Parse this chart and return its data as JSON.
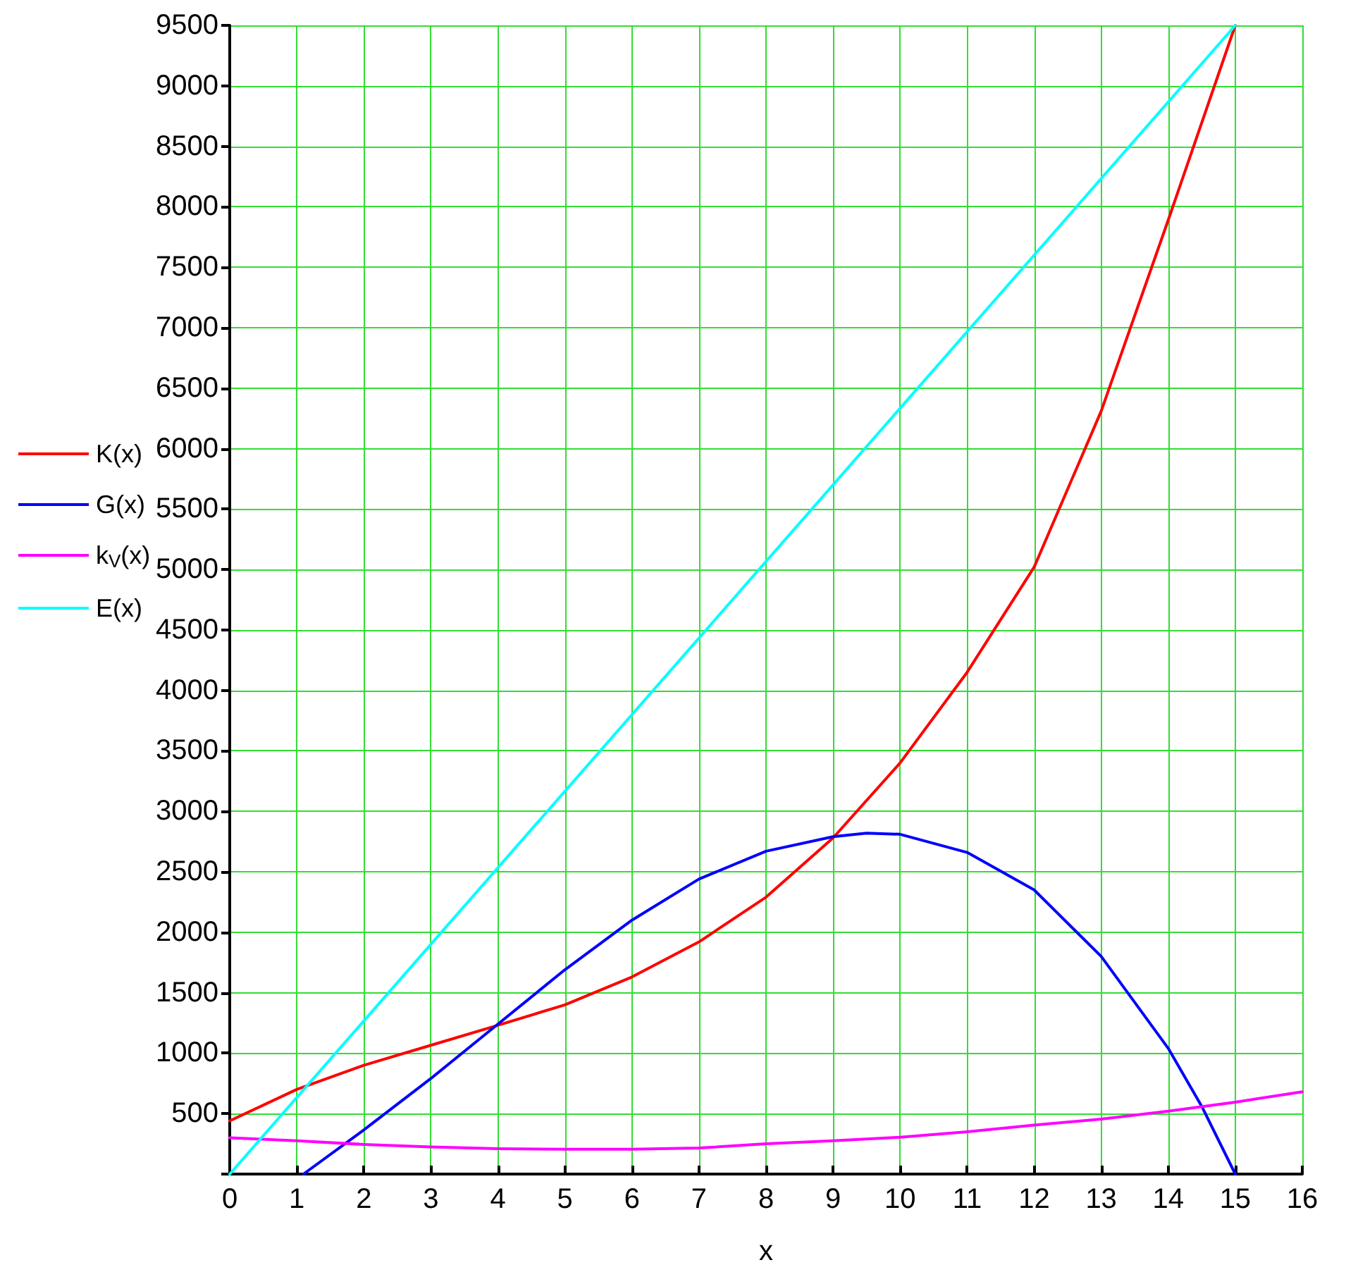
{
  "chart_data": {
    "type": "line",
    "xlabel": "x",
    "xlim": [
      0,
      16
    ],
    "xticks": [
      0,
      1,
      2,
      3,
      4,
      5,
      6,
      7,
      8,
      9,
      10,
      11,
      12,
      13,
      14,
      15,
      16
    ],
    "ylim": [
      0,
      9500
    ],
    "yticks": [
      {
        "value": 0,
        "label": null
      },
      500,
      1000,
      1500,
      2000,
      2500,
      3000,
      3500,
      4000,
      4500,
      5000,
      5500,
      6000,
      6500,
      7000,
      7500,
      8000,
      8500,
      9000,
      9500
    ],
    "grid": true,
    "legend": "left",
    "marker": "none",
    "line_style": "solid",
    "series": [
      {
        "name": "K(x)",
        "color": "#ff0000",
        "x": [
          0,
          1,
          2,
          3,
          4,
          5,
          6,
          7,
          8,
          9,
          10,
          11,
          12,
          13,
          14,
          15
        ],
        "values": [
          440,
          700,
          900,
          1065,
          1230,
          1400,
          1630,
          1920,
          2290,
          2780,
          3400,
          4150,
          5020,
          6310,
          7890,
          9500
        ]
      },
      {
        "name": "G(x)",
        "color": "#0000ff",
        "x": [
          1.1,
          2,
          3,
          4,
          5,
          6,
          7,
          8,
          9,
          9.5,
          10,
          11,
          12,
          13,
          14,
          14.5,
          15
        ],
        "values": [
          0,
          365,
          790,
          1240,
          1690,
          2100,
          2440,
          2670,
          2790,
          2820,
          2810,
          2660,
          2350,
          1800,
          1040,
          560,
          0
        ]
      },
      {
        "name": "k$_{V}$(x)",
        "color": "#ff00ff",
        "x": [
          0,
          1,
          2,
          3,
          4,
          5,
          6,
          7,
          8,
          9,
          10,
          11,
          12,
          13,
          14,
          15,
          16
        ],
        "values": [
          300,
          275,
          245,
          225,
          210,
          205,
          205,
          215,
          250,
          275,
          305,
          350,
          405,
          455,
          520,
          595,
          680
        ]
      },
      {
        "name": "E(x)",
        "color": "#00ffff",
        "x": [
          0,
          15
        ],
        "values": [
          0,
          9500
        ]
      }
    ]
  }
}
